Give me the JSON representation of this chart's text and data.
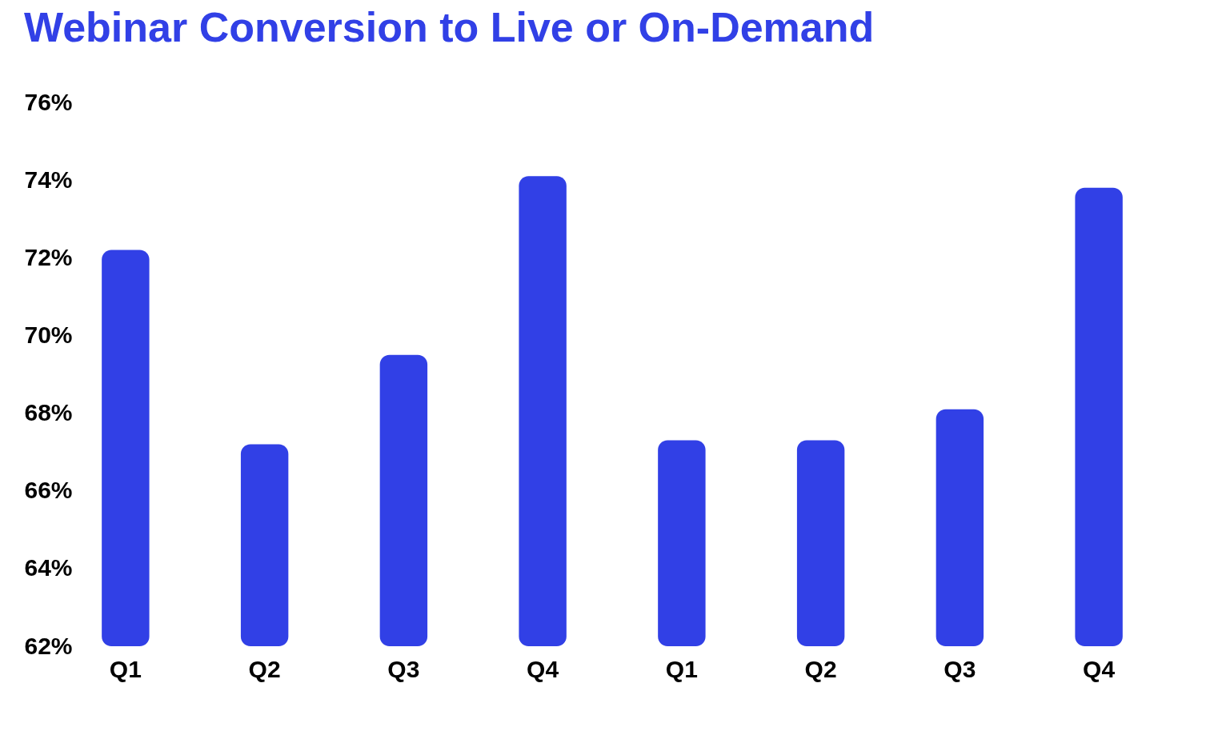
{
  "chart_data": {
    "type": "bar",
    "title": "Webinar Conversion to Live or On-Demand",
    "categories": [
      "Q1",
      "Q2",
      "Q3",
      "Q4",
      "Q1",
      "Q2",
      "Q3",
      "Q4"
    ],
    "values": [
      72.2,
      67.2,
      69.5,
      74.1,
      67.3,
      67.3,
      68.1,
      73.8
    ],
    "color": "#3140e6",
    "ylim": [
      62,
      76
    ],
    "yticks": [
      {
        "value": 62,
        "label": "62%"
      },
      {
        "value": 64,
        "label": "64%"
      },
      {
        "value": 66,
        "label": "66%"
      },
      {
        "value": 68,
        "label": "68%"
      },
      {
        "value": 70,
        "label": "70%"
      },
      {
        "value": 72,
        "label": "72%"
      },
      {
        "value": 74,
        "label": "74%"
      },
      {
        "value": 76,
        "label": "76%"
      }
    ],
    "grid": false
  }
}
